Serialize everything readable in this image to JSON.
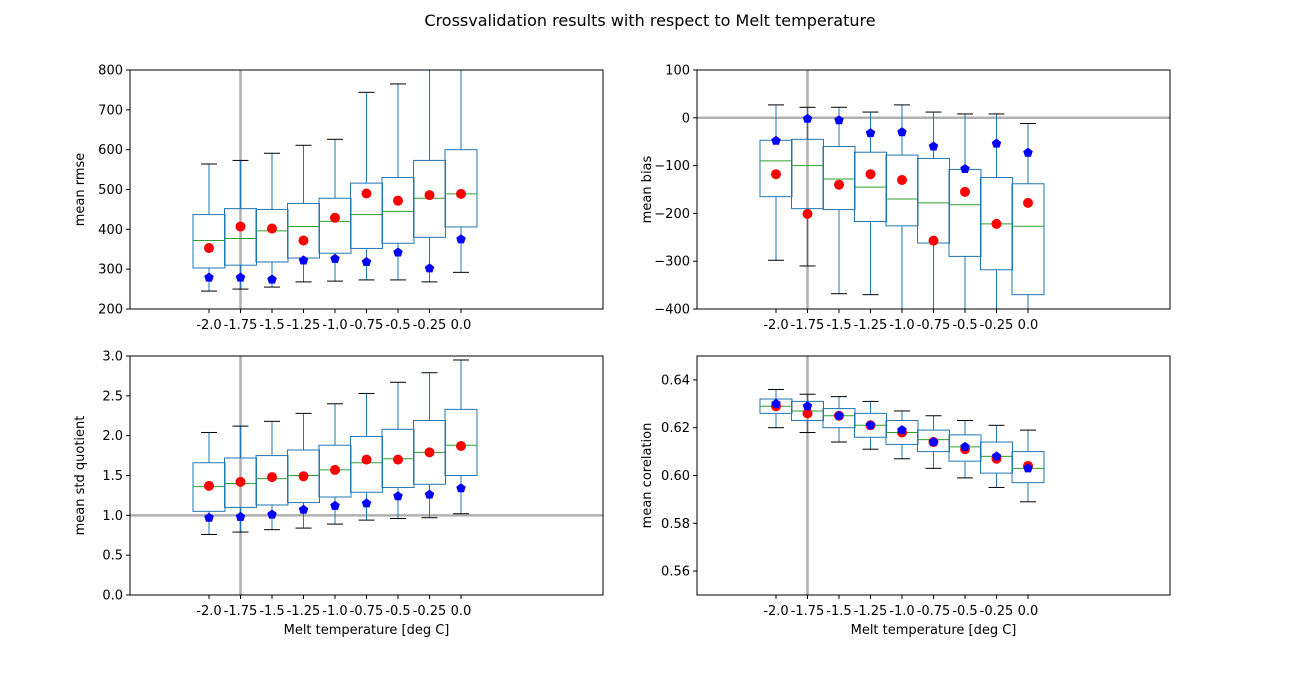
{
  "figure": {
    "suptitle": "Crossvalidation results with respect to Melt temperature"
  },
  "colors": {
    "box": "#1f77b4",
    "median": "#2ca02c",
    "mean_marker": "#ff0000",
    "pentagon_marker": "#0000ff",
    "whisker_cap": "#000000",
    "reference_line": "#b0b0b0"
  },
  "chart_data": [
    {
      "type": "box",
      "ylabel": "mean rmse",
      "xlabel": "",
      "categories": [
        "-2.0",
        "-1.75",
        "-1.5",
        "-1.25",
        "-1.0",
        "-0.75",
        "-0.5",
        "-0.25",
        "0.0"
      ],
      "ylim": [
        200,
        800
      ],
      "yticks": [
        "200",
        "300",
        "400",
        "500",
        "600",
        "700",
        "800"
      ],
      "ytick_values": [
        200,
        300,
        400,
        500,
        600,
        700,
        800
      ],
      "vline_at": "-1.75",
      "hline_at": null,
      "boxes": [
        {
          "q1": 303,
          "median": 372,
          "q3": 437,
          "whisker_low": 245,
          "whisker_high": 564
        },
        {
          "q1": 310,
          "median": 377,
          "q3": 452,
          "whisker_low": 250,
          "whisker_high": 573
        },
        {
          "q1": 318,
          "median": 396,
          "q3": 450,
          "whisker_low": 255,
          "whisker_high": 591
        },
        {
          "q1": 328,
          "median": 407,
          "q3": 465,
          "whisker_low": 268,
          "whisker_high": 611
        },
        {
          "q1": 340,
          "median": 420,
          "q3": 478,
          "whisker_low": 270,
          "whisker_high": 626
        },
        {
          "q1": 352,
          "median": 437,
          "q3": 516,
          "whisker_low": 273,
          "whisker_high": 744
        },
        {
          "q1": 365,
          "median": 445,
          "q3": 530,
          "whisker_low": 273,
          "whisker_high": 765
        },
        {
          "q1": 380,
          "median": 478,
          "q3": 573,
          "whisker_low": 268,
          "whisker_high": 820
        },
        {
          "q1": 406,
          "median": 489,
          "q3": 600,
          "whisker_low": 292,
          "whisker_high": 820
        }
      ],
      "mean_points": [
        353,
        407,
        402,
        372,
        429,
        490,
        472,
        486,
        489
      ],
      "pentagon_points": [
        279,
        279,
        274,
        322,
        326,
        318,
        342,
        302,
        375
      ]
    },
    {
      "type": "box",
      "ylabel": "mean bias",
      "xlabel": "",
      "categories": [
        "-2.0",
        "-1.75",
        "-1.5",
        "-1.25",
        "-1.0",
        "-0.75",
        "-0.5",
        "-0.25",
        "0.0"
      ],
      "ylim": [
        -400,
        100
      ],
      "yticks": [
        "−400",
        "−300",
        "−200",
        "−100",
        "0",
        "100"
      ],
      "ytick_values": [
        -400,
        -300,
        -200,
        -100,
        0,
        100
      ],
      "vline_at": "-1.75",
      "hline_at": 0,
      "boxes": [
        {
          "q1": -165,
          "median": -90,
          "q3": -47,
          "whisker_low": -298,
          "whisker_high": 27
        },
        {
          "q1": -190,
          "median": -100,
          "q3": -45,
          "whisker_low": -310,
          "whisker_high": 22
        },
        {
          "q1": -192,
          "median": -128,
          "q3": -60,
          "whisker_low": -368,
          "whisker_high": 22
        },
        {
          "q1": -217,
          "median": -145,
          "q3": -72,
          "whisker_low": -370,
          "whisker_high": 12
        },
        {
          "q1": -226,
          "median": -170,
          "q3": -78,
          "whisker_low": -420,
          "whisker_high": 27
        },
        {
          "q1": -262,
          "median": -178,
          "q3": -85,
          "whisker_low": -420,
          "whisker_high": 12
        },
        {
          "q1": -290,
          "median": -182,
          "q3": -108,
          "whisker_low": -420,
          "whisker_high": 8
        },
        {
          "q1": -318,
          "median": -222,
          "q3": -125,
          "whisker_low": -420,
          "whisker_high": 8
        },
        {
          "q1": -370,
          "median": -227,
          "q3": -138,
          "whisker_low": -420,
          "whisker_high": -12
        }
      ],
      "mean_points": [
        -118,
        -201,
        -140,
        -118,
        -130,
        -257,
        -155,
        -222,
        -178
      ],
      "pentagon_points": [
        -48,
        -2,
        -5,
        -32,
        -30,
        -60,
        -107,
        -54,
        -73
      ]
    },
    {
      "type": "box",
      "ylabel": "mean std quotient",
      "xlabel": "Melt temperature [deg C]",
      "categories": [
        "-2.0",
        "-1.75",
        "-1.5",
        "-1.25",
        "-1.0",
        "-0.75",
        "-0.5",
        "-0.25",
        "0.0"
      ],
      "ylim": [
        0.0,
        3.0
      ],
      "yticks": [
        "0.0",
        "0.5",
        "1.0",
        "1.5",
        "2.0",
        "2.5",
        "3.0"
      ],
      "ytick_values": [
        0,
        0.5,
        1.0,
        1.5,
        2.0,
        2.5,
        3.0
      ],
      "vline_at": "-1.75",
      "hline_at": 1.0,
      "boxes": [
        {
          "q1": 1.05,
          "median": 1.36,
          "q3": 1.66,
          "whisker_low": 0.76,
          "whisker_high": 2.04
        },
        {
          "q1": 1.1,
          "median": 1.4,
          "q3": 1.72,
          "whisker_low": 0.79,
          "whisker_high": 2.12
        },
        {
          "q1": 1.13,
          "median": 1.46,
          "q3": 1.75,
          "whisker_low": 0.82,
          "whisker_high": 2.18
        },
        {
          "q1": 1.16,
          "median": 1.5,
          "q3": 1.82,
          "whisker_low": 0.84,
          "whisker_high": 2.28
        },
        {
          "q1": 1.23,
          "median": 1.57,
          "q3": 1.88,
          "whisker_low": 0.89,
          "whisker_high": 2.4
        },
        {
          "q1": 1.29,
          "median": 1.66,
          "q3": 1.99,
          "whisker_low": 0.94,
          "whisker_high": 2.53
        },
        {
          "q1": 1.35,
          "median": 1.71,
          "q3": 2.08,
          "whisker_low": 0.96,
          "whisker_high": 2.67
        },
        {
          "q1": 1.39,
          "median": 1.79,
          "q3": 2.19,
          "whisker_low": 0.97,
          "whisker_high": 2.79
        },
        {
          "q1": 1.5,
          "median": 1.88,
          "q3": 2.33,
          "whisker_low": 1.02,
          "whisker_high": 2.95
        }
      ],
      "mean_points": [
        1.37,
        1.42,
        1.48,
        1.49,
        1.57,
        1.7,
        1.7,
        1.79,
        1.87
      ],
      "pentagon_points": [
        0.97,
        0.98,
        1.01,
        1.07,
        1.12,
        1.15,
        1.24,
        1.26,
        1.34
      ]
    },
    {
      "type": "box",
      "ylabel": "mean corelation",
      "xlabel": "Melt temperature [deg C]",
      "categories": [
        "-2.0",
        "-1.75",
        "-1.5",
        "-1.25",
        "-1.0",
        "-0.75",
        "-0.5",
        "-0.25",
        "0.0"
      ],
      "ylim": [
        0.55,
        0.65
      ],
      "yticks": [
        "0.56",
        "0.58",
        "0.60",
        "0.62",
        "0.64"
      ],
      "ytick_values": [
        0.56,
        0.58,
        0.6,
        0.62,
        0.64
      ],
      "vline_at": "-1.75",
      "hline_at": null,
      "boxes": [
        {
          "q1": 0.626,
          "median": 0.629,
          "q3": 0.632,
          "whisker_low": 0.62,
          "whisker_high": 0.636
        },
        {
          "q1": 0.623,
          "median": 0.627,
          "q3": 0.631,
          "whisker_low": 0.618,
          "whisker_high": 0.634
        },
        {
          "q1": 0.62,
          "median": 0.625,
          "q3": 0.628,
          "whisker_low": 0.614,
          "whisker_high": 0.633
        },
        {
          "q1": 0.616,
          "median": 0.621,
          "q3": 0.626,
          "whisker_low": 0.611,
          "whisker_high": 0.631
        },
        {
          "q1": 0.613,
          "median": 0.618,
          "q3": 0.623,
          "whisker_low": 0.607,
          "whisker_high": 0.627
        },
        {
          "q1": 0.61,
          "median": 0.615,
          "q3": 0.619,
          "whisker_low": 0.603,
          "whisker_high": 0.625
        },
        {
          "q1": 0.606,
          "median": 0.612,
          "q3": 0.617,
          "whisker_low": 0.599,
          "whisker_high": 0.623
        },
        {
          "q1": 0.601,
          "median": 0.608,
          "q3": 0.614,
          "whisker_low": 0.595,
          "whisker_high": 0.621
        },
        {
          "q1": 0.597,
          "median": 0.603,
          "q3": 0.61,
          "whisker_low": 0.589,
          "whisker_high": 0.619
        }
      ],
      "mean_points": [
        0.629,
        0.626,
        0.625,
        0.621,
        0.618,
        0.614,
        0.611,
        0.607,
        0.604
      ],
      "pentagon_points": [
        0.63,
        0.629,
        0.625,
        0.621,
        0.619,
        0.614,
        0.612,
        0.608,
        0.603
      ]
    }
  ]
}
